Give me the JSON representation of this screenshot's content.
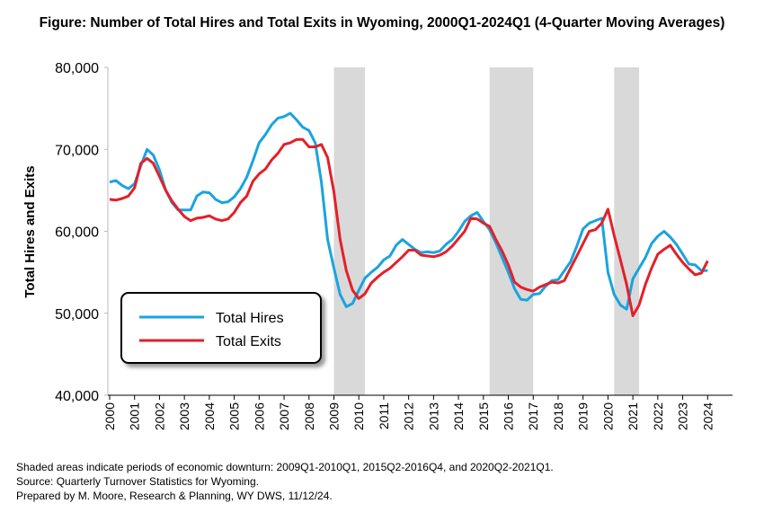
{
  "chart_data": {
    "type": "line",
    "title": "Figure: Number of Total Hires and Total Exits in Wyoming, 2000Q1-2024Q1 (4-Quarter Moving Averages)",
    "y_label": "Total Hires and Exits",
    "footnotes": [
      "Shaded areas indicate periods of economic downturn: 2009Q1-2010Q1, 2015Q2-2016Q4, and 2020Q2-2021Q1.",
      "Source: Quarterly Turnover Statistics for Wyoming.",
      "Prepared by M. Moore, Research & Planning, WY DWS, 11/12/24."
    ],
    "x": [
      2000,
      2000.25,
      2000.5,
      2000.75,
      2001,
      2001.25,
      2001.5,
      2001.75,
      2002,
      2002.25,
      2002.5,
      2002.75,
      2003,
      2003.25,
      2003.5,
      2003.75,
      2004,
      2004.25,
      2004.5,
      2004.75,
      2005,
      2005.25,
      2005.5,
      2005.75,
      2006,
      2006.25,
      2006.5,
      2006.75,
      2007,
      2007.25,
      2007.5,
      2007.75,
      2008,
      2008.25,
      2008.5,
      2008.75,
      2009,
      2009.25,
      2009.5,
      2009.75,
      2010,
      2010.25,
      2010.5,
      2010.75,
      2011,
      2011.25,
      2011.5,
      2011.75,
      2012,
      2012.25,
      2012.5,
      2012.75,
      2013,
      2013.25,
      2013.5,
      2013.75,
      2014,
      2014.25,
      2014.5,
      2014.75,
      2015,
      2015.25,
      2015.5,
      2015.75,
      2016,
      2016.25,
      2016.5,
      2016.75,
      2017,
      2017.25,
      2017.5,
      2017.75,
      2018,
      2018.25,
      2018.5,
      2018.75,
      2019,
      2019.25,
      2019.5,
      2019.75,
      2020,
      2020.25,
      2020.5,
      2020.75,
      2021,
      2021.25,
      2021.5,
      2021.75,
      2022,
      2022.25,
      2022.5,
      2022.75,
      2023,
      2023.25,
      2023.5,
      2023.75,
      2024
    ],
    "series": [
      {
        "name": "Total Hires",
        "color": "#1aa3e0",
        "values": [
          66000,
          66200,
          65600,
          65200,
          65800,
          68000,
          70000,
          69300,
          67500,
          65000,
          63500,
          62600,
          62600,
          62600,
          64300,
          64800,
          64700,
          63900,
          63500,
          63600,
          64200,
          65200,
          66600,
          68600,
          70800,
          71800,
          73000,
          73800,
          74000,
          74400,
          73600,
          72700,
          72300,
          70800,
          66000,
          59000,
          55500,
          52300,
          50800,
          51200,
          52800,
          54300,
          55000,
          55600,
          56500,
          57000,
          58300,
          59000,
          58400,
          57800,
          57400,
          57500,
          57400,
          57600,
          58400,
          59000,
          60000,
          61200,
          61900,
          62300,
          61200,
          60200,
          58600,
          56800,
          55000,
          53000,
          51700,
          51600,
          52300,
          52400,
          53300,
          54000,
          54100,
          55200,
          56300,
          58200,
          60300,
          61000,
          61300,
          61600,
          55000,
          52300,
          51000,
          50500,
          54200,
          55500,
          56800,
          58500,
          59400,
          60000,
          59300,
          58400,
          57200,
          56000,
          55900,
          55200,
          55200
        ]
      },
      {
        "name": "Total Exits",
        "color": "#e3202a",
        "values": [
          63900,
          63800,
          64000,
          64300,
          65300,
          68300,
          68900,
          68300,
          66700,
          65000,
          63700,
          62700,
          61800,
          61300,
          61600,
          61700,
          61900,
          61500,
          61300,
          61500,
          62300,
          63500,
          64300,
          66100,
          67000,
          67600,
          68700,
          69500,
          70600,
          70800,
          71200,
          71200,
          70300,
          70300,
          70600,
          69000,
          64800,
          59000,
          55200,
          52800,
          51800,
          52400,
          53700,
          54400,
          55000,
          55500,
          56200,
          56900,
          57700,
          57700,
          57100,
          57000,
          56900,
          57100,
          57500,
          58200,
          59100,
          60000,
          61600,
          61500,
          61000,
          60600,
          59000,
          57600,
          55900,
          53800,
          53200,
          52900,
          52700,
          53200,
          53500,
          53800,
          53700,
          54000,
          55500,
          57000,
          58500,
          60000,
          60200,
          61000,
          62700,
          59500,
          56500,
          53500,
          49700,
          51000,
          53500,
          55500,
          57200,
          57800,
          58300,
          57200,
          56200,
          55400,
          54700,
          54900,
          56400
        ]
      }
    ],
    "shaded_periods": [
      [
        2009,
        2010.25
      ],
      [
        2015.25,
        2017
      ],
      [
        2020.25,
        2021.25
      ]
    ],
    "shade_color": "#d9d9d9",
    "xlim": [
      2000,
      2025
    ],
    "xticks": [
      2000,
      2001,
      2002,
      2003,
      2004,
      2005,
      2006,
      2007,
      2008,
      2009,
      2010,
      2011,
      2012,
      2013,
      2014,
      2015,
      2016,
      2017,
      2018,
      2019,
      2020,
      2021,
      2022,
      2023,
      2024
    ],
    "ylim": [
      40000,
      80000
    ],
    "yticks": [
      {
        "value": 40000,
        "label": "40,000"
      },
      {
        "value": 50000,
        "label": "50,000"
      },
      {
        "value": 60000,
        "label": "60,000"
      },
      {
        "value": 70000,
        "label": "70,000"
      },
      {
        "value": 80000,
        "label": "80,000"
      }
    ],
    "legend": "lower left"
  }
}
